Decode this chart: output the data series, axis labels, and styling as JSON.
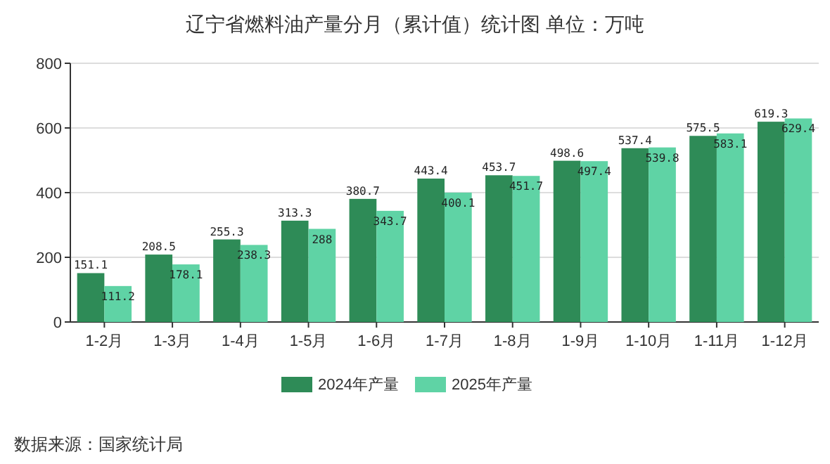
{
  "chart_data": {
    "type": "bar",
    "title": "辽宁省燃料油产量分月（累计值）统计图 单位：万吨",
    "categories": [
      "1-2月",
      "1-3月",
      "1-4月",
      "1-5月",
      "1-6月",
      "1-7月",
      "1-8月",
      "1-9月",
      "1-10月",
      "1-11月",
      "1-12月"
    ],
    "series": [
      {
        "name": "2024年产量",
        "color": "#2e8b57",
        "values": [
          151.1,
          208.5,
          255.3,
          313.3,
          380.7,
          443.4,
          453.7,
          498.6,
          537.4,
          575.5,
          619.3
        ]
      },
      {
        "name": "2025年产量",
        "color": "#5fd3a5",
        "values": [
          111.2,
          178.1,
          238.3,
          288,
          343.7,
          400.1,
          451.7,
          497.4,
          539.8,
          583.1,
          629.4
        ]
      }
    ],
    "ylim": [
      0,
      800
    ],
    "yticks": [
      0,
      200,
      400,
      600,
      800
    ],
    "grid": "y",
    "legend": "bottom",
    "data_labels": true,
    "annotations": [
      "数据来源：国家统计局"
    ]
  }
}
